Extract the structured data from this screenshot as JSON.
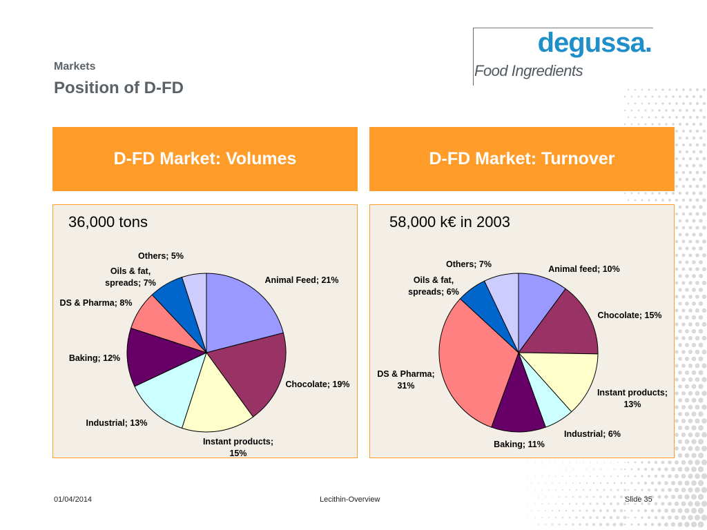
{
  "header": {
    "section": "Markets",
    "title": "Position of D-FD"
  },
  "logo": {
    "brand": "degussa.",
    "tagline": "Food Ingredients"
  },
  "panels": [
    {
      "header": "D-FD Market: Volumes"
    },
    {
      "header": "D-FD Market: Turnover"
    }
  ],
  "colors": {
    "accent_orange": "#ff9c2a",
    "panel_bg": "#f3efe6",
    "title_gray": "#5a6268",
    "logo_blue": "#1f8fc9"
  },
  "chart_data": [
    {
      "type": "pie",
      "subtitle": "36,000 tons",
      "slices": [
        {
          "label": "Animal Feed",
          "value": 21,
          "color": "#9999ff"
        },
        {
          "label": "Chocolate",
          "value": 19,
          "color": "#993366"
        },
        {
          "label": "Instant products",
          "value": 15,
          "color": "#ffffcc"
        },
        {
          "label": "Industrial",
          "value": 13,
          "color": "#ccffff"
        },
        {
          "label": "Baking",
          "value": 12,
          "color": "#660066"
        },
        {
          "label": "DS & Pharma",
          "value": 8,
          "color": "#ff8080"
        },
        {
          "label": "Oils & fat, spreads",
          "value": 7,
          "color": "#0066cc"
        },
        {
          "label": "Others",
          "value": 5,
          "color": "#ccccff"
        }
      ],
      "labels": [
        {
          "lines": [
            "Animal Feed; 21%"
          ]
        },
        {
          "lines": [
            "Chocolate; 19%"
          ]
        },
        {
          "lines": [
            "Instant products;",
            "15%"
          ]
        },
        {
          "lines": [
            "Industrial; 13%"
          ]
        },
        {
          "lines": [
            "Baking; 12%"
          ]
        },
        {
          "lines": [
            "DS & Pharma; 8%"
          ]
        },
        {
          "lines": [
            "Oils & fat,",
            "spreads; 7%"
          ]
        },
        {
          "lines": [
            "Others; 5%"
          ]
        }
      ]
    },
    {
      "type": "pie",
      "subtitle": "58,000 k€ in 2003",
      "slices": [
        {
          "label": "Animal feed",
          "value": 10,
          "color": "#9999ff"
        },
        {
          "label": "Chocolate",
          "value": 15,
          "color": "#993366"
        },
        {
          "label": "Instant products",
          "value": 13,
          "color": "#ffffcc"
        },
        {
          "label": "Industrial",
          "value": 6,
          "color": "#ccffff"
        },
        {
          "label": "Baking",
          "value": 11,
          "color": "#660066"
        },
        {
          "label": "DS & Pharma",
          "value": 31,
          "color": "#ff8080"
        },
        {
          "label": "Oils & fat, spreads",
          "value": 6,
          "color": "#0066cc"
        },
        {
          "label": "Others",
          "value": 7,
          "color": "#ccccff"
        }
      ],
      "labels": [
        {
          "lines": [
            "Animal feed; 10%"
          ]
        },
        {
          "lines": [
            "Chocolate; 15%"
          ]
        },
        {
          "lines": [
            "Instant products;",
            "13%"
          ]
        },
        {
          "lines": [
            "Industrial; 6%"
          ]
        },
        {
          "lines": [
            "Baking; 11%"
          ]
        },
        {
          "lines": [
            "DS & Pharma;",
            "31%"
          ]
        },
        {
          "lines": [
            "Oils & fat,",
            "spreads; 6%"
          ]
        },
        {
          "lines": [
            "Others; 7%"
          ]
        }
      ]
    }
  ],
  "footer": {
    "date": "01/04/2014",
    "center": "Lecithin-Overview",
    "slide": "Slide 35"
  }
}
